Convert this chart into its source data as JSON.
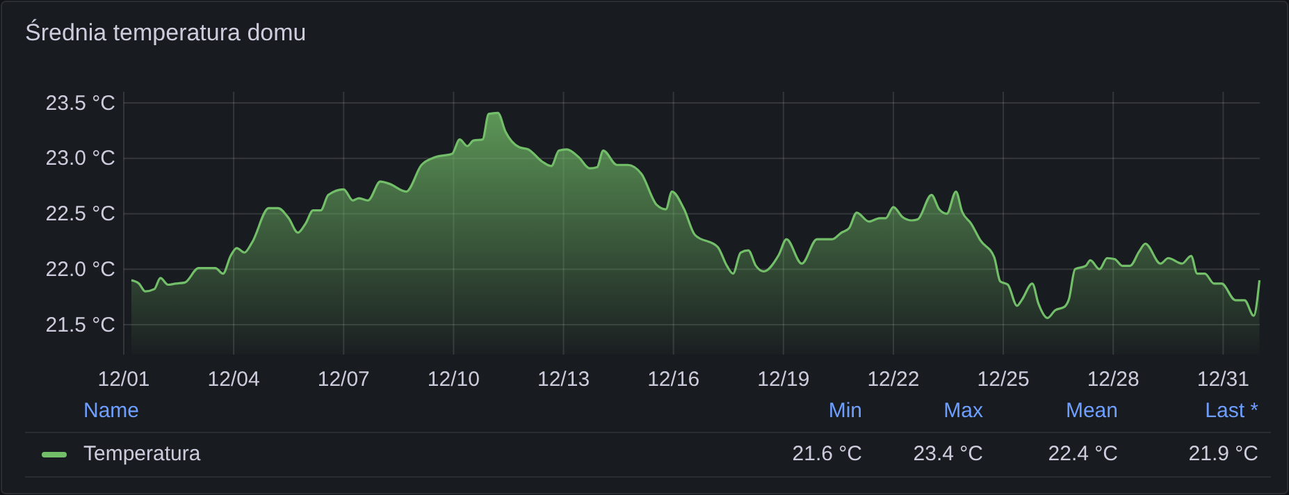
{
  "chart_data": {
    "type": "area",
    "title": "Średnia temperatura domu",
    "x": [
      "--12-01T05:00",
      "--12-01T10:00",
      "--12-01T14:00",
      "--12-01T20:00",
      "--12-02T00:00",
      "--12-02T05:00",
      "--12-02T10:00",
      "--12-02T16:00",
      "--12-03T01:00",
      "--12-03T12:00",
      "--12-03T17:00",
      "--12-03T22:00",
      "--12-04T02:00",
      "--12-04T07:00",
      "--12-04T12:00",
      "--12-04T23:00",
      "--12-05T05:00",
      "--12-05T12:00",
      "--12-05T18:00",
      "--12-05T23:00",
      "--12-06T04:00",
      "--12-06T09:00",
      "--12-06T14:00",
      "--12-07T00:00",
      "--12-07T06:00",
      "--12-07T10:00",
      "--12-07T16:00",
      "--12-08T00:00",
      "--12-08T06:00",
      "--12-08T17:00",
      "--12-09T03:00",
      "--12-09T12:00",
      "--12-09T23:00",
      "--12-10T04:00",
      "--12-10T09:00",
      "--12-10T13:00",
      "--12-10T19:00",
      "--12-10T23:00",
      "--12-11T05:00",
      "--12-11T10:00",
      "--12-11T19:00",
      "--12-12T01:00",
      "--12-12T10:00",
      "--12-12T16:00",
      "--12-12T21:00",
      "--12-13T02:00",
      "--12-13T10:00",
      "--12-13T17:00",
      "--12-13T22:00",
      "--12-14T02:00",
      "--12-14T11:00",
      "--12-14T18:00",
      "--12-15T03:00",
      "--12-15T13:00",
      "--12-15T19:00",
      "--12-15T23:00",
      "--12-16T07:00",
      "--12-16T14:00",
      "--12-17T05:00",
      "--12-17T11:00",
      "--12-17T15:00",
      "--12-17T20:00",
      "--12-18T01:00",
      "--12-18T06:00",
      "--12-18T11:00",
      "--12-18T21:00",
      "--12-19T02:00",
      "--12-19T12:00",
      "--12-19T22:00",
      "--12-20T08:00",
      "--12-20T14:00",
      "--12-20T19:00",
      "--12-21T00:00",
      "--12-21T08:00",
      "--12-21T15:00",
      "--12-21T19:00",
      "--12-22T00:00",
      "--12-22T06:00",
      "--12-22T12:00",
      "--12-22T16:00",
      "--12-23T01:00",
      "--12-23T06:00",
      "--12-23T11:00",
      "--12-23T17:00",
      "--12-23T21:00",
      "--12-24T03:00",
      "--12-24T09:00",
      "--12-24T18:00",
      "--12-24T22:00",
      "--12-25T03:00",
      "--12-25T09:00",
      "--12-25T12:00",
      "--12-25T19:00",
      "--12-25T23:00",
      "--12-26T05:00",
      "--12-26T10:00",
      "--12-26T16:00",
      "--12-26T19:00",
      "--12-26T23:00",
      "--12-27T06:00",
      "--12-27T09:00",
      "--12-27T15:00",
      "--12-27T20:00",
      "--12-28T01:00",
      "--12-28T06:00",
      "--12-28T11:00",
      "--12-28T17:00",
      "--12-28T21:00",
      "--12-29T07:00",
      "--12-29T12:00",
      "--12-29T21:00",
      "--12-30T03:00",
      "--12-30T07:00",
      "--12-30T12:00",
      "--12-30T18:00",
      "--12-30T23:00",
      "--12-31T08:00",
      "--12-31T14:00",
      "--12-31T20:00",
      "--12-31T23:45"
    ],
    "series": [
      {
        "name": "Temperatura",
        "color": "#73bf69",
        "values": [
          21.9,
          21.87,
          21.8,
          21.82,
          21.92,
          21.86,
          21.87,
          21.88,
          22.01,
          22.01,
          21.96,
          22.12,
          22.19,
          22.15,
          22.24,
          22.55,
          22.55,
          22.46,
          22.33,
          22.41,
          22.53,
          22.53,
          22.67,
          22.72,
          22.62,
          22.64,
          22.62,
          22.79,
          22.77,
          22.7,
          22.94,
          23.01,
          23.04,
          23.17,
          23.11,
          23.16,
          23.17,
          23.4,
          23.41,
          23.24,
          23.1,
          23.08,
          22.97,
          22.93,
          23.07,
          23.08,
          23.01,
          22.91,
          22.92,
          23.07,
          22.94,
          22.94,
          22.86,
          22.58,
          22.54,
          22.7,
          22.54,
          22.31,
          22.2,
          22.03,
          21.96,
          22.15,
          22.17,
          22.03,
          21.98,
          22.13,
          22.27,
          22.05,
          22.27,
          22.27,
          22.33,
          22.37,
          22.51,
          22.43,
          22.46,
          22.46,
          22.56,
          22.47,
          22.44,
          22.45,
          22.67,
          22.54,
          22.5,
          22.7,
          22.52,
          22.41,
          22.26,
          22.11,
          21.89,
          21.86,
          21.67,
          21.72,
          21.87,
          21.69,
          21.56,
          21.63,
          21.66,
          21.73,
          22.0,
          22.03,
          22.08,
          22.0,
          22.1,
          22.09,
          22.03,
          22.03,
          22.16,
          22.23,
          22.05,
          22.1,
          22.05,
          22.12,
          21.96,
          21.96,
          21.87,
          21.87,
          21.72,
          21.72,
          21.58,
          21.9
        ]
      }
    ],
    "xlim": [
      "--12-01T00:00",
      "--12-31T23:59"
    ],
    "xticks": [
      {
        "value": "--12-01",
        "label": "12/01"
      },
      {
        "value": "--12-04",
        "label": "12/04"
      },
      {
        "value": "--12-07",
        "label": "12/07"
      },
      {
        "value": "--12-10",
        "label": "12/10"
      },
      {
        "value": "--12-13",
        "label": "12/13"
      },
      {
        "value": "--12-16",
        "label": "12/16"
      },
      {
        "value": "--12-19",
        "label": "12/19"
      },
      {
        "value": "--12-22",
        "label": "12/22"
      },
      {
        "value": "--12-25",
        "label": "12/25"
      },
      {
        "value": "--12-28",
        "label": "12/28"
      },
      {
        "value": "--12-31",
        "label": "12/31"
      }
    ],
    "ylim": [
      21.23,
      23.6
    ],
    "yticks": [
      {
        "value": 21.5,
        "label": "21.5 °C"
      },
      {
        "value": 22.0,
        "label": "22.0 °C"
      },
      {
        "value": 22.5,
        "label": "22.5 °C"
      },
      {
        "value": 23.0,
        "label": "23.0 °C"
      },
      {
        "value": 23.5,
        "label": "23.5 °C"
      }
    ],
    "grid": true,
    "legend": "bottom",
    "marker": "none",
    "line_style": "solid",
    "annotations": [
      "Name",
      "Min",
      "Max",
      "Mean",
      "Last *",
      "21.6 °C",
      "23.4 °C",
      "22.4 °C",
      "21.9 °C"
    ]
  }
}
